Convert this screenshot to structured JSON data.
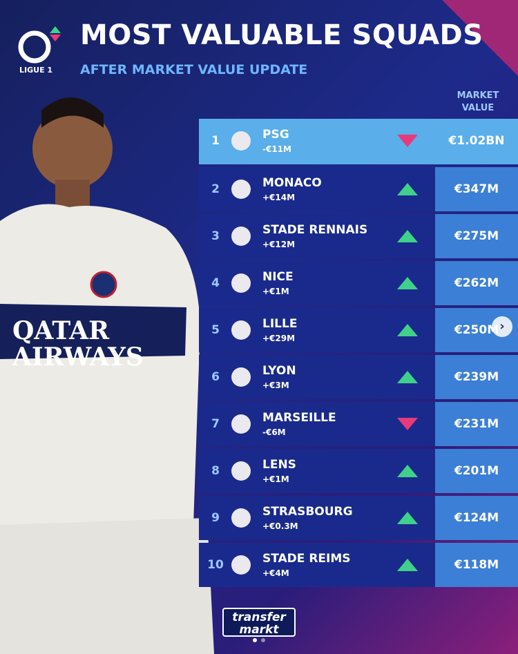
{
  "header": {
    "logo_label": "LIGUE 1",
    "title": "MOST VALUABLE SQUADS",
    "subtitle": "AFTER MARKET VALUE UPDATE"
  },
  "player": {
    "shirt_sponsor": "QATAR AIRWAYS"
  },
  "table": {
    "value_header": "MARKET VALUE",
    "rows": [
      {
        "rank": "1",
        "club": "PSG",
        "change": "-€11M",
        "trend": "down",
        "value": "€1.02BN"
      },
      {
        "rank": "2",
        "club": "MONACO",
        "change": "+€14M",
        "trend": "up",
        "value": "€347M"
      },
      {
        "rank": "3",
        "club": "STADE RENNAIS",
        "change": "+€12M",
        "trend": "up",
        "value": "€275M"
      },
      {
        "rank": "4",
        "club": "NICE",
        "change": "+€1M",
        "trend": "up",
        "value": "€262M"
      },
      {
        "rank": "5",
        "club": "LILLE",
        "change": "+€29M",
        "trend": "up",
        "value": "€250M"
      },
      {
        "rank": "6",
        "club": "LYON",
        "change": "+€3M",
        "trend": "up",
        "value": "€239M"
      },
      {
        "rank": "7",
        "club": "MARSEILLE",
        "change": "-€6M",
        "trend": "down",
        "value": "€231M"
      },
      {
        "rank": "8",
        "club": "LENS",
        "change": "+€1M",
        "trend": "up",
        "value": "€201M"
      },
      {
        "rank": "9",
        "club": "STRASBOURG",
        "change": "+€0.3M",
        "trend": "up",
        "value": "€124M"
      },
      {
        "rank": "10",
        "club": "STADE REIMS",
        "change": "+€4M",
        "trend": "up",
        "value": "€118M"
      }
    ]
  },
  "footer": {
    "brand": "transfer markt"
  }
}
